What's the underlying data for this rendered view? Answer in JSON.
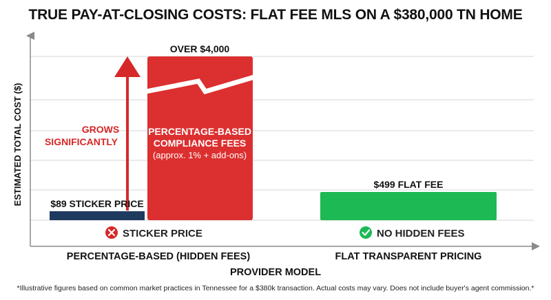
{
  "chart_data": {
    "type": "bar",
    "title": "TRUE PAY-AT-CLOSING COSTS: FLAT FEE MLS ON A $380,000 TN HOME",
    "xlabel": "PROVIDER MODEL",
    "ylabel": "ESTIMATED TOTAL COST ($)",
    "grid": true,
    "categories": [
      "PERCENTAGE-BASED (HIDDEN FEES)",
      "FLAT TRANSPARENT PRICING"
    ],
    "bars": [
      {
        "category": "PERCENTAGE-BASED (HIDDEN FEES)",
        "value": 89,
        "label": "$89 STICKER PRICE",
        "color": "#1f3a5f"
      },
      {
        "category": "PERCENTAGE-BASED (HIDDEN FEES)",
        "value": 4000,
        "label": "OVER $4,000",
        "color": "#dc2f2f",
        "axis_break": true,
        "inner_text": [
          "PERCENTAGE-BASED",
          "COMPLIANCE FEES"
        ],
        "inner_subtext": "(approx. 1% + add-ons)"
      },
      {
        "category": "FLAT TRANSPARENT PRICING",
        "value": 499,
        "label": "$499 FLAT FEE",
        "color": "#1db954"
      }
    ],
    "annotations": {
      "arrow_text": [
        "GROWS",
        "SIGNIFICANTLY"
      ],
      "arrow_color": "#d62828",
      "badges": [
        {
          "text": "STICKER PRICE",
          "icon": "x-circle-icon",
          "color": "#d62828"
        },
        {
          "text": "NO HIDDEN FEES",
          "icon": "check-circle-icon",
          "color": "#1db954"
        }
      ]
    },
    "footnote": "*Illustrative figures based on common market practices in Tennessee for a $380k transaction. Actual costs may vary. Does not include buyer's agent commission.*"
  }
}
